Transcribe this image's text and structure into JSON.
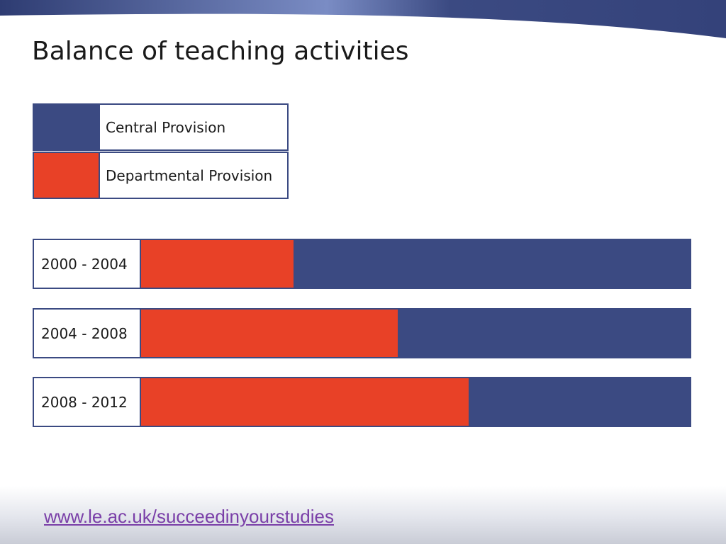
{
  "slide": {
    "title": "Balance of teaching activities",
    "footer_link": "www.le.ac.uk/succeedinyourstudies"
  },
  "colors": {
    "central": "#3b4a82",
    "departmental": "#e84127",
    "banner": "#3b4a82",
    "link": "#7a3fa8"
  },
  "legend": [
    {
      "label": "Central Provision",
      "color": "#3b4a82"
    },
    {
      "label": "Departmental Provision",
      "color": "#e84127"
    }
  ],
  "chart_data": {
    "type": "bar",
    "stacked": true,
    "orientation": "horizontal",
    "percent": true,
    "categories": [
      "2000 - 2004",
      "2004 - 2008",
      "2008 - 2012"
    ],
    "series": [
      {
        "name": "Departmental Provision",
        "values": [
          28,
          47,
          60
        ]
      },
      {
        "name": "Central Provision",
        "values": [
          72,
          53,
          40
        ]
      }
    ],
    "xlim": [
      0,
      100
    ],
    "grid": false,
    "legend_position": "top-left"
  }
}
